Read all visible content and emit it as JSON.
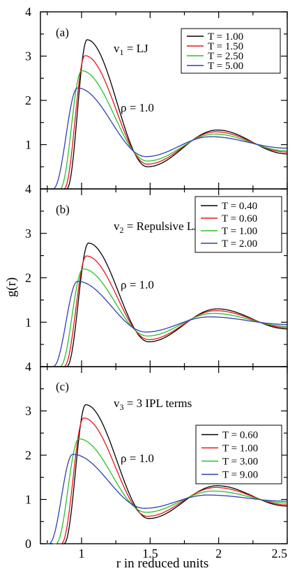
{
  "figure": {
    "ylabel": "g(r)",
    "xlabel": "r in reduced units",
    "x_tick_labels": [
      "1",
      "1.5",
      "2",
      "2.5"
    ],
    "y_tick_labels_top": [
      "1",
      "2",
      "3",
      "4"
    ],
    "y_tick_labels_middle": [
      "1",
      "2",
      "3",
      "4"
    ],
    "y_tick_labels_bottom": [
      "0",
      "1",
      "2",
      "3",
      "4"
    ]
  },
  "colors": {
    "black": "#000000",
    "red": "#e8141c",
    "green": "#27c227",
    "blue": "#2e3fb4"
  },
  "chart_data": [
    {
      "type": "line",
      "panel_label": "(a)",
      "potential_label": "v",
      "potential_sub": "1",
      "potential_rest": " = LJ",
      "density_label": "ρ = 1.0",
      "xlim": [
        0.7,
        2.5
      ],
      "ylim": [
        0,
        4
      ],
      "legend_position": "top-right",
      "series": [
        {
          "name": "T = 1.00",
          "color": "#000000",
          "peak1_x": 1.04,
          "peak1_y": 3.37,
          "onset": 0.89,
          "trough_x": 1.48,
          "trough_y": 0.5,
          "peak2_x": 1.99,
          "peak2_y": 1.33,
          "end_y": 0.79
        },
        {
          "name": "T = 1.50",
          "color": "#e8141c",
          "peak1_x": 1.025,
          "peak1_y": 3.01,
          "onset": 0.87,
          "trough_x": 1.48,
          "trough_y": 0.56,
          "peak2_x": 1.98,
          "peak2_y": 1.29,
          "end_y": 0.83
        },
        {
          "name": "T = 2.50",
          "color": "#27c227",
          "peak1_x": 1.0,
          "peak1_y": 2.67,
          "onset": 0.84,
          "trough_x": 1.48,
          "trough_y": 0.63,
          "peak2_x": 1.97,
          "peak2_y": 1.24,
          "end_y": 0.86
        },
        {
          "name": "T = 5.00",
          "color": "#2e3fb4",
          "peak1_x": 0.97,
          "peak1_y": 2.28,
          "onset": 0.79,
          "trough_x": 1.47,
          "trough_y": 0.73,
          "peak2_x": 1.94,
          "peak2_y": 1.18,
          "end_y": 0.92
        }
      ]
    },
    {
      "type": "line",
      "panel_label": "(b)",
      "potential_label": "v",
      "potential_sub": "2",
      "potential_rest": " = Repulsive LJ",
      "density_label": "ρ = 1.0",
      "xlim": [
        0.7,
        2.5
      ],
      "ylim": [
        0,
        4
      ],
      "legend_position": "right",
      "series": [
        {
          "name": "T = 0.40",
          "color": "#000000",
          "peak1_x": 1.05,
          "peak1_y": 2.78,
          "onset": 0.89,
          "trough_x": 1.49,
          "trough_y": 0.56,
          "peak2_x": 1.99,
          "peak2_y": 1.3,
          "end_y": 0.85
        },
        {
          "name": "T = 0.60",
          "color": "#e8141c",
          "peak1_x": 1.035,
          "peak1_y": 2.49,
          "onset": 0.87,
          "trough_x": 1.49,
          "trough_y": 0.61,
          "peak2_x": 1.98,
          "peak2_y": 1.26,
          "end_y": 0.88
        },
        {
          "name": "T = 1.00",
          "color": "#27c227",
          "peak1_x": 1.01,
          "peak1_y": 2.2,
          "onset": 0.84,
          "trough_x": 1.48,
          "trough_y": 0.69,
          "peak2_x": 1.96,
          "peak2_y": 1.2,
          "end_y": 0.91
        },
        {
          "name": "T = 2.00",
          "color": "#2e3fb4",
          "peak1_x": 0.97,
          "peak1_y": 1.92,
          "onset": 0.79,
          "trough_x": 1.47,
          "trough_y": 0.78,
          "peak2_x": 1.93,
          "peak2_y": 1.12,
          "end_y": 0.95
        }
      ]
    },
    {
      "type": "line",
      "panel_label": "(c)",
      "potential_label": "v",
      "potential_sub": "3",
      "potential_rest": " = 3 IPL terms",
      "density_label": "ρ = 1.0",
      "xlim": [
        0.7,
        2.5
      ],
      "ylim": [
        0,
        4
      ],
      "legend_position": "right",
      "series": [
        {
          "name": "T = 0.60",
          "color": "#000000",
          "peak1_x": 1.03,
          "peak1_y": 3.14,
          "onset": 0.87,
          "trough_x": 1.49,
          "trough_y": 0.57,
          "peak2_x": 1.99,
          "peak2_y": 1.31,
          "end_y": 0.85
        },
        {
          "name": "T = 1.00",
          "color": "#e8141c",
          "peak1_x": 1.015,
          "peak1_y": 2.84,
          "onset": 0.85,
          "trough_x": 1.48,
          "trough_y": 0.62,
          "peak2_x": 1.98,
          "peak2_y": 1.27,
          "end_y": 0.88
        },
        {
          "name": "T = 3.00",
          "color": "#27c227",
          "peak1_x": 0.98,
          "peak1_y": 2.37,
          "onset": 0.81,
          "trough_x": 1.47,
          "trough_y": 0.71,
          "peak2_x": 1.96,
          "peak2_y": 1.19,
          "end_y": 0.92
        },
        {
          "name": "T = 9.00",
          "color": "#2e3fb4",
          "peak1_x": 0.935,
          "peak1_y": 2.02,
          "onset": 0.76,
          "trough_x": 1.46,
          "trough_y": 0.8,
          "peak2_x": 1.92,
          "peak2_y": 1.1,
          "end_y": 0.96
        }
      ]
    }
  ]
}
